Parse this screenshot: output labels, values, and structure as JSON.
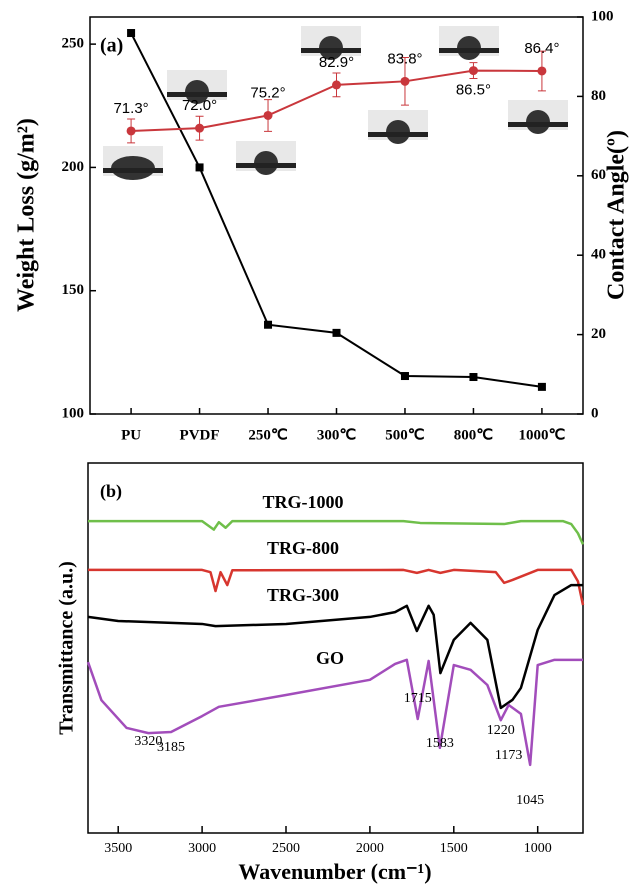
{
  "chart_data": [
    {
      "type": "line",
      "annotation": "(a)",
      "categories": [
        "PU",
        "PVDF",
        "250℃",
        "300℃",
        "500℃",
        "800℃",
        "1000℃"
      ],
      "ylabel": "Weight Loss (g/m²)",
      "y2label": "Contact Angle(º)",
      "ylim": [
        100,
        261
      ],
      "yticks": [
        100,
        150,
        200,
        250
      ],
      "y2lim": [
        0,
        100
      ],
      "y2ticks": [
        0,
        20,
        40,
        60,
        80,
        100
      ],
      "series": [
        {
          "color": "#000000",
          "marker": "square",
          "values": [
            254.5,
            200,
            136.2,
            132.9,
            115.4,
            115,
            111
          ]
        },
        {
          "color": "#c9373c",
          "marker": "circle",
          "axis": "y2",
          "values": [
            71.3,
            72.0,
            75.2,
            82.9,
            83.8,
            86.5,
            86.4
          ],
          "errors": [
            3,
            3,
            4,
            3,
            6,
            2,
            5
          ],
          "value_labels": [
            "71.3°",
            "72.0°",
            "75.2°",
            "82.9°",
            "83.8°",
            "86.5°",
            "86.4°"
          ]
        }
      ]
    },
    {
      "type": "line",
      "annotation": "(b)",
      "xlabel": "Wavenumber (cm⁻¹)",
      "ylabel": "Transmittance (a.u.)",
      "xlim": [
        3680,
        730
      ],
      "xticks": [
        3500,
        3000,
        2500,
        2000,
        1500,
        1000
      ],
      "ylim": [
        0,
        100
      ],
      "series": [
        {
          "name": "TRG-1000",
          "color": "#6fbf4a",
          "x": [
            3680,
            3000,
            2930,
            2900,
            2860,
            2820,
            1800,
            1700,
            1200,
            1100,
            850,
            800,
            760,
            730
          ],
          "values": [
            84.3,
            84.3,
            82,
            84,
            82.5,
            84.3,
            84.3,
            83.8,
            83.5,
            84.3,
            84.3,
            83.5,
            81,
            78
          ]
        },
        {
          "name": "TRG-800",
          "color": "#d7362f",
          "x": [
            3680,
            3000,
            2950,
            2920,
            2890,
            2850,
            2820,
            1800,
            1720,
            1650,
            1580,
            1500,
            1250,
            1200,
            1150,
            1000,
            800,
            760,
            730
          ],
          "values": [
            71.1,
            71.1,
            70.5,
            65.4,
            70.5,
            67,
            71,
            71.1,
            70.3,
            71.1,
            70.3,
            71.1,
            70.5,
            67.6,
            68.4,
            71.1,
            71.1,
            68,
            61.6
          ]
        },
        {
          "name": "TRG-300",
          "color": "#000000",
          "x": [
            3680,
            3500,
            3000,
            2920,
            2500,
            2000,
            1850,
            1780,
            1720,
            1650,
            1620,
            1580,
            1500,
            1400,
            1300,
            1220,
            1150,
            1100,
            1000,
            900,
            800,
            730
          ],
          "values": [
            58.4,
            57.3,
            56.5,
            55.9,
            56.5,
            58.4,
            59.7,
            61.4,
            54.6,
            61.4,
            59,
            43.2,
            52.2,
            56.8,
            52.2,
            33.8,
            36,
            39.2,
            54.9,
            64.3,
            67,
            67
          ]
        },
        {
          "name": "GO",
          "color": "#a24dbb",
          "x": [
            3680,
            3600,
            3450,
            3320,
            3185,
            3000,
            2900,
            2500,
            2000,
            1850,
            1780,
            1715,
            1650,
            1583,
            1500,
            1400,
            1300,
            1220,
            1173,
            1100,
            1045,
            1000,
            900,
            730
          ],
          "values": [
            46.2,
            35.9,
            28.4,
            27,
            27.3,
            31.6,
            34.1,
            37.3,
            41.4,
            45.7,
            46.8,
            30.8,
            46.5,
            23,
            45.4,
            44.1,
            40,
            30.5,
            34.6,
            32.2,
            18.4,
            45.4,
            46.8,
            46.8
          ]
        }
      ],
      "peak_labels": [
        3320,
        3185,
        1715,
        1583,
        1220,
        1173,
        1045
      ]
    }
  ]
}
